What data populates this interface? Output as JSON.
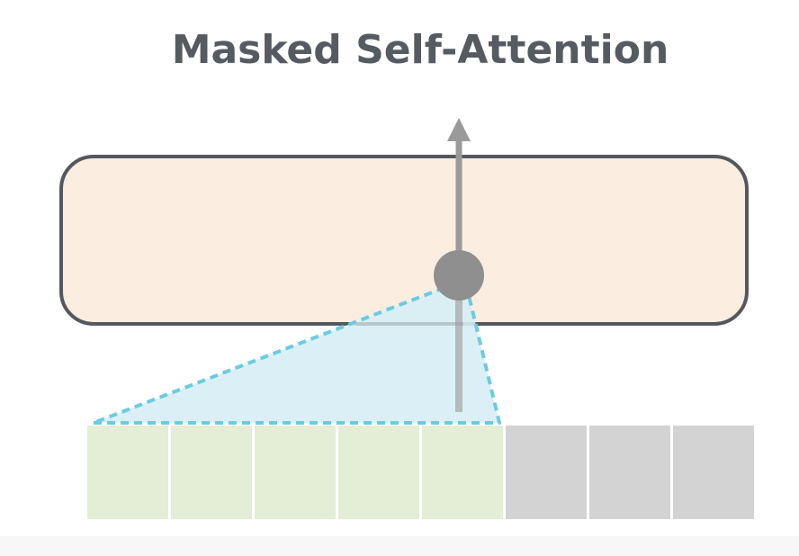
{
  "title": "Masked Self-Attention",
  "colors": {
    "title": "#555b61",
    "layer_fill": "#fbeee1",
    "layer_stroke": "#54585e",
    "visible_token": "#e4edd5",
    "masked_token": "#d3d3d3",
    "attention_fill": "#d6eef5",
    "attention_stroke": "#6ccbe0",
    "arrow": "#9a9a9a",
    "node": "#8f8f8f"
  },
  "tokens": {
    "visible_count": 5,
    "masked_count": 3
  }
}
